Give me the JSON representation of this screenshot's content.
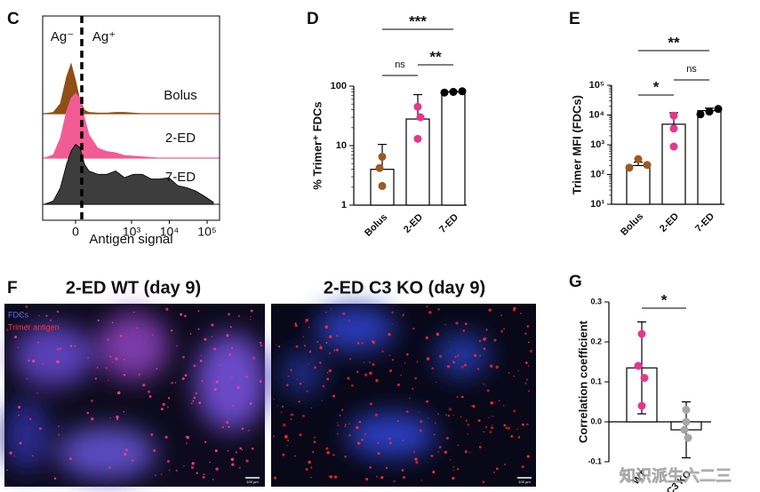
{
  "chart_data": [
    {
      "type": "density",
      "label": "C",
      "xlabel": "Antigen signal",
      "annotations": [
        "Ag⁻",
        "Ag⁺"
      ],
      "xlim": [
        -240,
        213000
      ],
      "xticks": [
        {
          "value": 0,
          "label": "0"
        },
        {
          "value": 1000,
          "label": "10³"
        },
        {
          "value": 10000,
          "label": "10⁴"
        },
        {
          "value": 100000,
          "label": "10⁵"
        }
      ],
      "x": [
        -215,
        -119,
        -70,
        -38,
        -18,
        0,
        18,
        38,
        60,
        119,
        215,
        375,
        648,
        1115,
        1915,
        3300,
        5670,
        9740,
        16760,
        28800,
        49600,
        85200,
        146000
      ],
      "ylim": [
        0,
        1
      ],
      "series": [
        {
          "name": "Bolus",
          "color": "#8f4f17",
          "values": [
            0,
            0.02,
            0.15,
            0.55,
            0.75,
            0.5,
            0.2,
            0.05,
            0.02,
            0.01,
            0.01,
            0.02,
            0.02,
            0.01,
            0,
            0,
            0,
            0,
            0,
            0,
            0,
            0,
            0
          ]
        },
        {
          "name": "2-ED",
          "color": "#f25c94",
          "values": [
            0,
            0.05,
            0.3,
            0.7,
            0.9,
            0.97,
            0.9,
            0.6,
            0.35,
            0.15,
            0.1,
            0.08,
            0.04,
            0.03,
            0.02,
            0.01,
            0,
            0,
            0,
            0,
            0,
            0,
            0
          ]
        },
        {
          "name": "7-ED",
          "color": "#3d3d3d",
          "values": [
            0,
            0.05,
            0.25,
            0.6,
            0.8,
            0.9,
            0.85,
            0.6,
            0.5,
            0.45,
            0.45,
            0.5,
            0.4,
            0.45,
            0.45,
            0.38,
            0.38,
            0.4,
            0.28,
            0.25,
            0.2,
            0.12,
            0.03
          ]
        }
      ]
    },
    {
      "type": "bar",
      "label": "D",
      "ylabel": "% Trimer⁺ FDCs",
      "log": true,
      "categories": [
        "Bolus",
        "2-ED",
        "7-ED"
      ],
      "values": [
        4,
        28,
        80
      ],
      "errors": [
        6.5,
        44,
        2
      ],
      "error_direction": "up",
      "colors": [
        "#9b5a22",
        "#e6358e",
        "#000000"
      ],
      "points": [
        [
          2.1,
          4.2,
          6.5
        ],
        [
          13,
          30,
          45
        ],
        [
          78,
          80,
          82
        ]
      ],
      "ylim": [
        1,
        100
      ],
      "yticks": [
        1,
        10,
        100
      ],
      "comparisons": [
        {
          "from": 0,
          "to": 2,
          "label": "***"
        },
        {
          "from": 0,
          "to": 1,
          "label": "ns"
        },
        {
          "from": 1,
          "to": 2,
          "label": "**"
        }
      ]
    },
    {
      "type": "bar",
      "label": "E",
      "ylabel": "Trimer MFI (FDCs)",
      "log": true,
      "categories": [
        "Bolus",
        "2-ED",
        "7-ED"
      ],
      "values": [
        200,
        4900,
        14000
      ],
      "errors": [
        60,
        7000,
        3000
      ],
      "error_direction": "up",
      "colors": [
        "#9b5a22",
        "#e6358e",
        "#000000"
      ],
      "points": [
        [
          170,
          330,
          210
        ],
        [
          870,
          3500,
          9500
        ],
        [
          10500,
          16000,
          13000
        ]
      ],
      "ylim": [
        10,
        100000
      ],
      "yticks": [
        {
          "value": 10,
          "label": "10¹"
        },
        {
          "value": 100,
          "label": "10²"
        },
        {
          "value": 1000,
          "label": "10³"
        },
        {
          "value": 10000,
          "label": "10⁴"
        },
        {
          "value": 100000,
          "label": "10⁵"
        }
      ],
      "comparisons": [
        {
          "from": 0,
          "to": 2,
          "label": "**"
        },
        {
          "from": 0,
          "to": 1,
          "label": "*"
        },
        {
          "from": 1,
          "to": 2,
          "label": "ns"
        }
      ]
    },
    {
      "type": "bar",
      "label": "G",
      "ylabel": "Correlation coefficient",
      "log": false,
      "categories": [
        "WT",
        "C3 KO"
      ],
      "values": [
        0.135,
        -0.02
      ],
      "errors": [
        0.115,
        0.07
      ],
      "error_direction": "both",
      "colors": [
        "#e6358e",
        "#a6a6a6"
      ],
      "points": [
        [
          0.22,
          0.14,
          0.11,
          0.04
        ],
        [
          0.0,
          -0.02,
          -0.04,
          0.03
        ]
      ],
      "ylim": [
        -0.1,
        0.3
      ],
      "yticks": [
        -0.1,
        {
          "value": 0,
          "label": "0.0"
        },
        0.1,
        0.2,
        0.3
      ],
      "comparisons": [
        {
          "from": 0,
          "to": 1,
          "label": "*"
        }
      ]
    }
  ],
  "figure_f": {
    "label": "F",
    "legend": [
      "FDCs",
      "Trimer antigen"
    ],
    "panels": [
      {
        "title": "2-ED WT (day 9)",
        "scale_bar": "100 µm"
      },
      {
        "title": "2-ED C3 KO (day 9)",
        "scale_bar": "100 µm"
      }
    ]
  },
  "watermark": "知识派生六二三"
}
